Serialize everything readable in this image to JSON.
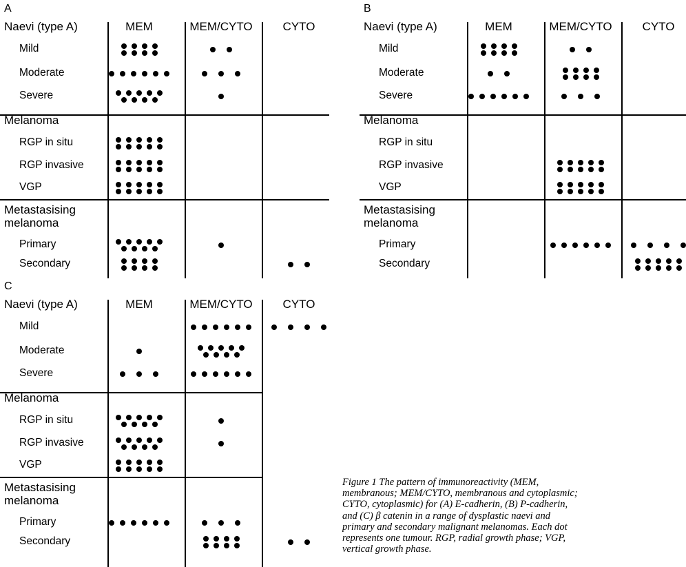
{
  "figure": {
    "columns": [
      "MEM",
      "MEM/CYTO",
      "CYTO"
    ],
    "sections": {
      "naevi": "Naevi (type A)",
      "melanoma": "Melanoma",
      "metastasising": "Metastasising\nmelanoma"
    },
    "rows": {
      "mild": "Mild",
      "moderate": "Moderate",
      "severe": "Severe",
      "rgp_in_situ": "RGP in situ",
      "rgp_invasive": "RGP invasive",
      "vgp": "VGP",
      "primary": "Primary",
      "secondary": "Secondary"
    },
    "panels": [
      {
        "label": "A",
        "counts": {
          "mild": [
            8,
            2,
            0
          ],
          "moderate": [
            6,
            3,
            0
          ],
          "severe": [
            9,
            1,
            0
          ],
          "rgp_in_situ": [
            10,
            0,
            0
          ],
          "rgp_invasive": [
            10,
            0,
            0
          ],
          "vgp": [
            10,
            0,
            0
          ],
          "primary": [
            9,
            1,
            0
          ],
          "secondary": [
            8,
            0,
            2
          ]
        }
      },
      {
        "label": "B",
        "counts": {
          "mild": [
            8,
            2,
            0
          ],
          "moderate": [
            2,
            8,
            0
          ],
          "severe": [
            6,
            3,
            0
          ],
          "rgp_in_situ": [
            0,
            0,
            0
          ],
          "rgp_invasive": [
            0,
            10,
            0
          ],
          "vgp": [
            0,
            10,
            0
          ],
          "primary": [
            0,
            6,
            4
          ],
          "secondary": [
            0,
            0,
            10
          ]
        }
      },
      {
        "label": "C",
        "counts": {
          "mild": [
            0,
            6,
            4
          ],
          "moderate": [
            1,
            9,
            0
          ],
          "severe": [
            3,
            6,
            0
          ],
          "rgp_in_situ": [
            9,
            1,
            0
          ],
          "rgp_invasive": [
            9,
            1,
            0
          ],
          "vgp": [
            10,
            0,
            0
          ],
          "primary": [
            6,
            3,
            0
          ],
          "secondary": [
            0,
            8,
            2
          ]
        }
      }
    ],
    "caption": [
      "Figure 1   The pattern of immunoreactivity (MEM,",
      "membranous; MEM/CYTO, membranous and cytoplasmic;",
      "CYTO, cytoplasmic) for (A) E-cadherin, (B) P-cadherin,",
      "and (C) β catenin in a range of dysplastic naevi and",
      "primary and secondary malignant melanomas. Each dot",
      "represents one tumour. RGP, radial growth phase; VGP,",
      "vertical growth phase."
    ]
  }
}
